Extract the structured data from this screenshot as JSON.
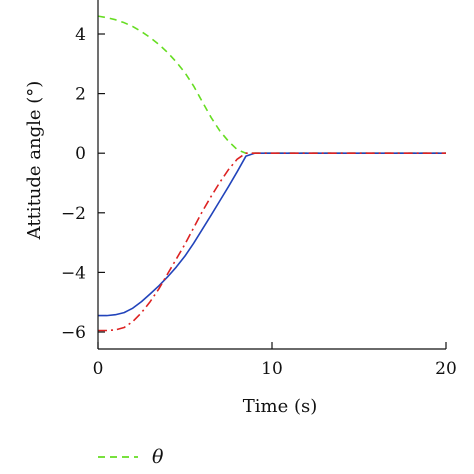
{
  "chart_data": {
    "type": "line",
    "xlabel": "Time (s)",
    "ylabel": "Attitude angle (°)",
    "xlim": [
      0,
      20
    ],
    "ylim": [
      -6.6,
      5.2
    ],
    "xticks": [
      0,
      10,
      20
    ],
    "yticks": [
      -6,
      -4,
      -2,
      0,
      2,
      4
    ],
    "grid": false,
    "legend_position": "bottom-left",
    "series": [
      {
        "name": "θ",
        "color": "#66dd22",
        "dash": "dashed",
        "x": [
          0,
          0.5,
          1,
          1.5,
          2,
          2.5,
          3,
          3.5,
          4,
          4.5,
          5,
          5.5,
          6,
          6.5,
          7,
          7.5,
          8,
          8.5,
          9,
          10,
          12,
          14,
          16,
          18,
          20
        ],
        "y": [
          4.6,
          4.55,
          4.48,
          4.38,
          4.25,
          4.08,
          3.88,
          3.65,
          3.38,
          3.06,
          2.7,
          2.25,
          1.72,
          1.2,
          0.75,
          0.4,
          0.12,
          0.0,
          0.0,
          0.0,
          0.0,
          0.0,
          0.0,
          0.0,
          0.0
        ]
      },
      {
        "color": "#2244bb",
        "dash": "solid",
        "x": [
          0,
          0.5,
          1,
          1.5,
          2,
          2.5,
          3,
          3.5,
          4,
          4.5,
          5,
          5.5,
          6,
          6.5,
          7,
          7.5,
          8,
          8.5,
          9,
          10,
          12,
          14,
          16,
          18,
          20
        ],
        "y": [
          -5.45,
          -5.45,
          -5.42,
          -5.35,
          -5.2,
          -4.98,
          -4.72,
          -4.45,
          -4.15,
          -3.82,
          -3.45,
          -3.02,
          -2.55,
          -2.08,
          -1.6,
          -1.12,
          -0.62,
          -0.1,
          0.0,
          0.0,
          0.0,
          0.0,
          0.0,
          0.0,
          0.0
        ]
      },
      {
        "color": "#dd2222",
        "dash": "dashdot",
        "x": [
          0,
          0.5,
          1,
          1.5,
          2,
          2.5,
          3,
          3.5,
          4,
          4.5,
          5,
          5.5,
          6,
          6.5,
          7,
          7.5,
          8,
          8.5,
          9,
          10,
          12,
          14,
          16,
          18,
          20
        ],
        "y": [
          -5.95,
          -5.95,
          -5.93,
          -5.85,
          -5.65,
          -5.35,
          -4.98,
          -4.55,
          -4.05,
          -3.55,
          -3.05,
          -2.5,
          -1.95,
          -1.45,
          -0.98,
          -0.55,
          -0.2,
          0.0,
          0.0,
          0.0,
          0.0,
          0.0,
          0.0,
          0.0,
          0.0
        ]
      }
    ]
  }
}
